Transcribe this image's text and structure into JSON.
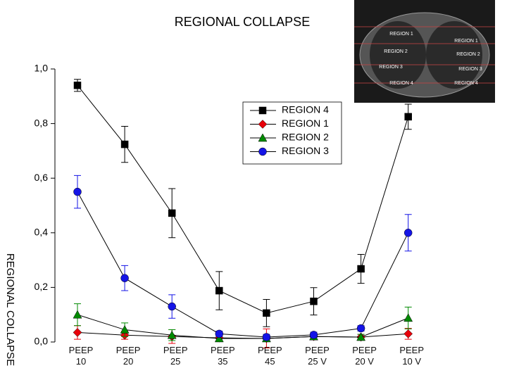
{
  "chart_data": {
    "type": "line",
    "title": "REGIONAL COLLAPSE",
    "y_label": "REGIONAL COLLAPSE",
    "categories": [
      "PEEP 10",
      "PEEP 20",
      "PEEP 25",
      "PEEP 35",
      "PEEP 45",
      "PEEP 25 V",
      "PEEP 20 V",
      "PEEP 10 V"
    ],
    "ylim": [
      0,
      1.0
    ],
    "yticks": [
      {
        "value": 0,
        "label": "0,0"
      },
      {
        "value": 0.2,
        "label": "0,2"
      },
      {
        "value": 0.4,
        "label": "0,4"
      },
      {
        "value": 0.6,
        "label": "0,6"
      },
      {
        "value": 0.8,
        "label": "0,8"
      },
      {
        "value": 1.0,
        "label": "1,0"
      }
    ],
    "legend": "upper right",
    "series": [
      {
        "name": "REGION 4",
        "color": "#000000",
        "marker": "square",
        "values": [
          0.94,
          0.724,
          0.472,
          0.188,
          0.106,
          0.149,
          0.268,
          0.825
        ],
        "errors": [
          0.022,
          0.066,
          0.09,
          0.07,
          0.05,
          0.05,
          0.053,
          0.046
        ]
      },
      {
        "name": "REGION 1",
        "color": "#e8000b",
        "marker": "diamond",
        "values": [
          0.035,
          0.025,
          0.02,
          0.015,
          0.013,
          0.02,
          0.018,
          0.03
        ],
        "errors": [
          0.025,
          0.015,
          0.025,
          0.01,
          0.035,
          0.01,
          0.01,
          0.02
        ]
      },
      {
        "name": "REGION 2",
        "color": "#008a00",
        "marker": "triangle",
        "values": [
          0.1,
          0.045,
          0.025,
          0.013,
          0.013,
          0.02,
          0.018,
          0.088
        ],
        "errors": [
          0.04,
          0.025,
          0.02,
          0.01,
          0.01,
          0.01,
          0.01,
          0.04
        ]
      },
      {
        "name": "REGION 3",
        "color": "#1414e6",
        "marker": "circle",
        "values": [
          0.55,
          0.234,
          0.13,
          0.03,
          0.018,
          0.026,
          0.05,
          0.4
        ],
        "errors": [
          0.06,
          0.046,
          0.043,
          0.01,
          0.01,
          0.01,
          0.01,
          0.067
        ]
      }
    ],
    "inset_labels": [
      "REGION 1",
      "REGION 2",
      "REGION 3",
      "REGION 4",
      "REGION 1",
      "REGION 2",
      "REGION 3",
      "REGION 4"
    ]
  }
}
